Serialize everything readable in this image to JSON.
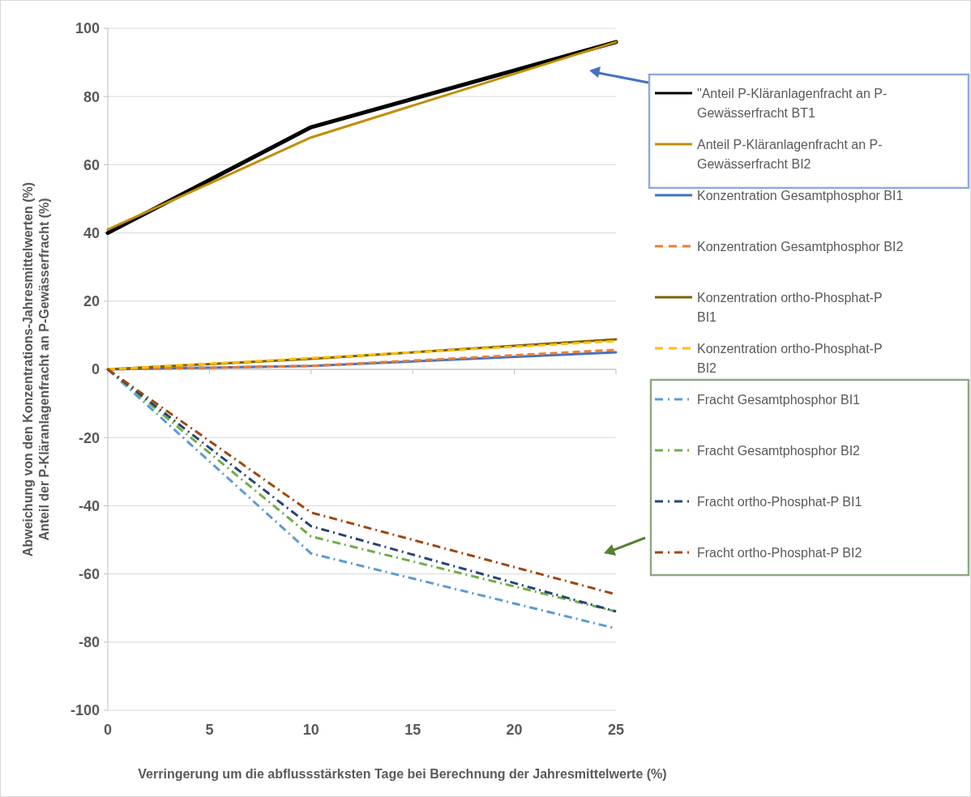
{
  "chart_data": {
    "type": "line",
    "xlabel": "Verringerung um die abflussstärksten Tage bei Berechnung der Jahresmittelwerte (%)",
    "ylabel": "Abweichung von den Konzentrations-Jahresmittelwerten (%)\nAnteil der P-Kläranlagenfracht an P-Gewässerfracht (%)",
    "x": [
      0,
      10,
      25
    ],
    "xlim": [
      0,
      25
    ],
    "xticks": [
      0,
      5,
      10,
      15,
      20,
      25
    ],
    "ylim": [
      -100,
      100
    ],
    "yticks": [
      -100,
      -80,
      -60,
      -40,
      -20,
      0,
      20,
      40,
      60,
      80,
      100
    ],
    "grid": "y",
    "legend": "right",
    "marker": "none",
    "series": [
      {
        "name": "\"Anteil P-Kläranlagenfracht an P-Gewässerfracht BT1",
        "color": "#000000",
        "line_style": "solid",
        "values": [
          40,
          71,
          96
        ]
      },
      {
        "name": "Anteil P-Kläranlagenfracht an P-Gewässerfracht BI2",
        "color": "#bf8f00",
        "line_style": "solid",
        "values": [
          41,
          68,
          96
        ]
      },
      {
        "name": "Konzentration Gesamtphosphor BI1",
        "color": "#4472c4",
        "line_style": "solid",
        "values": [
          0,
          1,
          5
        ]
      },
      {
        "name": "Konzentration Gesamtphosphor BI2",
        "color": "#ed7d31",
        "line_style": "dashed",
        "values": [
          0,
          1,
          5.7
        ]
      },
      {
        "name": "Konzentration ortho-Phosphat-P BI1",
        "color": "#7f6000",
        "line_style": "solid",
        "values": [
          0,
          3.1,
          8.8
        ]
      },
      {
        "name": "Konzentration ortho-Phosphat-P BI2",
        "color": "#ffc000",
        "line_style": "dashed",
        "values": [
          0,
          3.3,
          8.3
        ]
      },
      {
        "name": "Fracht Gesamtphosphor BI1",
        "color": "#5b9bd5",
        "line_style": "dashdot",
        "values": [
          0,
          -54,
          -76
        ]
      },
      {
        "name": "Fracht Gesamtphosphor BI2",
        "color": "#70ad47",
        "line_style": "dashdot",
        "values": [
          0,
          -49,
          -71
        ]
      },
      {
        "name": "Fracht ortho-Phosphat-P BI1",
        "color": "#264478",
        "line_style": "dashdot",
        "values": [
          0,
          -46,
          -71
        ]
      },
      {
        "name": "Fracht ortho-Phosphat-P BI2",
        "color": "#9e480e",
        "line_style": "dashdot",
        "values": [
          0,
          -42,
          -66
        ]
      }
    ]
  }
}
